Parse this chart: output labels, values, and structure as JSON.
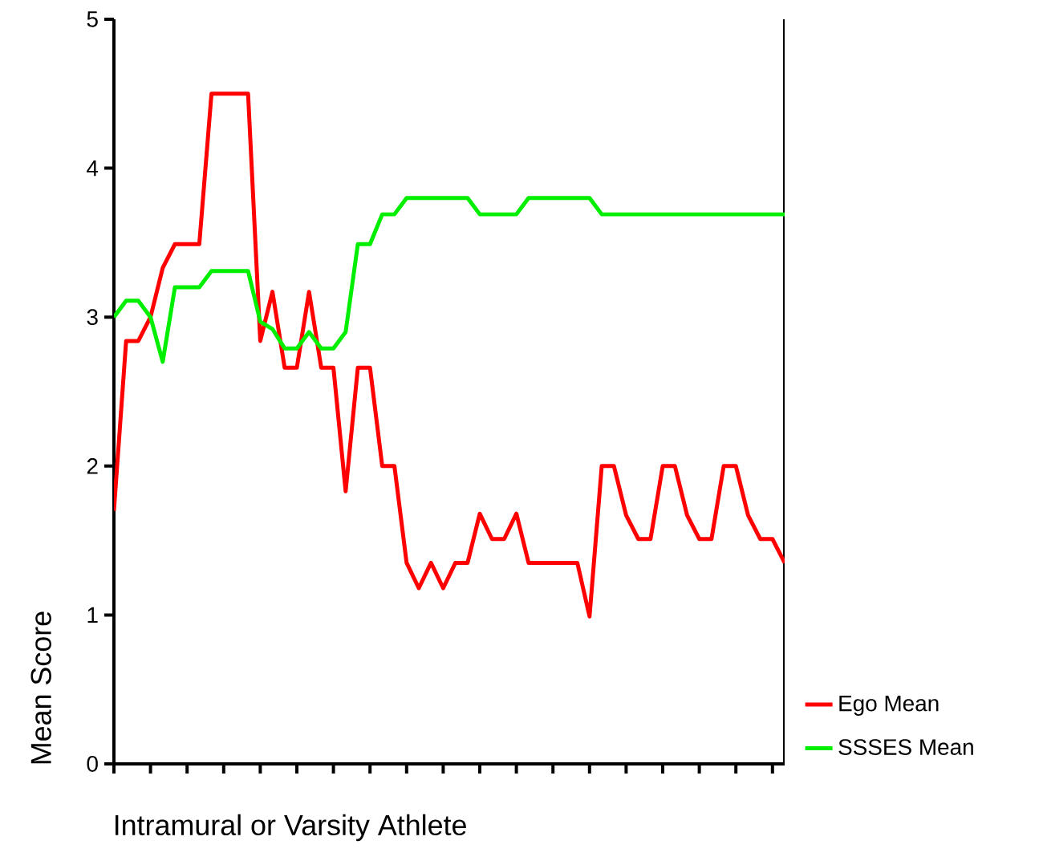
{
  "chart_data": {
    "type": "line",
    "xlabel": "Intramural or Varsity Athlete",
    "ylabel": "Mean Score",
    "categories": [
      null,
      null,
      null,
      null,
      null,
      null,
      null,
      null,
      null,
      null,
      null,
      null,
      null,
      null,
      null,
      null,
      null,
      null,
      null,
      null,
      null,
      null,
      null,
      null,
      null,
      null,
      null,
      null,
      null,
      null,
      null,
      null,
      null,
      null,
      null,
      null,
      null,
      null,
      null,
      null,
      null,
      null,
      null,
      null,
      null,
      null,
      null,
      null,
      null,
      null,
      null,
      null,
      null,
      null,
      null,
      null
    ],
    "series": [
      {
        "name": "Ego Mean",
        "color": "#ff0000",
        "values": [
          1.7,
          2.84,
          2.84,
          3.0,
          3.33,
          3.49,
          3.49,
          3.49,
          4.5,
          4.5,
          4.5,
          4.5,
          2.84,
          3.17,
          2.66,
          2.66,
          3.17,
          2.66,
          2.66,
          1.83,
          2.66,
          2.66,
          2.0,
          2.0,
          1.35,
          1.18,
          1.35,
          1.18,
          1.35,
          1.35,
          1.68,
          1.51,
          1.51,
          1.68,
          1.35,
          1.35,
          1.35,
          1.35,
          1.35,
          0.99,
          2.0,
          2.0,
          1.67,
          1.51,
          1.51,
          2.0,
          2.0,
          1.67,
          1.51,
          1.51,
          2.0,
          2.0,
          1.67,
          1.51,
          1.51,
          1.35
        ]
      },
      {
        "name": "SSSES Mean",
        "color": "#00ee00",
        "values": [
          3.0,
          3.11,
          3.11,
          3.0,
          2.7,
          3.2,
          3.2,
          3.2,
          3.31,
          3.31,
          3.31,
          3.31,
          2.97,
          2.92,
          2.79,
          2.79,
          2.9,
          2.79,
          2.79,
          2.9,
          3.49,
          3.49,
          3.69,
          3.69,
          3.8,
          3.8,
          3.8,
          3.8,
          3.8,
          3.8,
          3.69,
          3.69,
          3.69,
          3.69,
          3.8,
          3.8,
          3.8,
          3.8,
          3.8,
          3.8,
          3.69,
          3.69,
          3.69,
          3.69,
          3.69,
          3.69,
          3.69,
          3.69,
          3.69,
          3.69,
          3.69,
          3.69,
          3.69,
          3.69,
          3.69,
          3.69
        ]
      }
    ],
    "ylim": [
      0,
      5
    ],
    "yticks": [
      0,
      1,
      2,
      3,
      4,
      5
    ],
    "grid": false,
    "legend": "right",
    "marker": "none",
    "line_style": "solid"
  }
}
